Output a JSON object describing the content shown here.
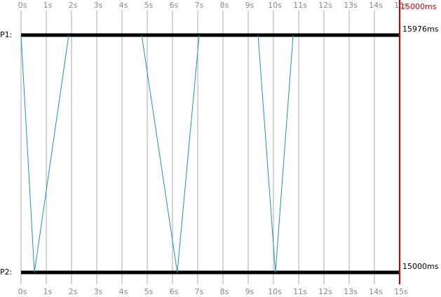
{
  "axis": {
    "xlim": [
      0,
      15
    ],
    "ticks": [
      {
        "value": 0,
        "label": "0s"
      },
      {
        "value": 1,
        "label": "1s"
      },
      {
        "value": 2,
        "label": "2s"
      },
      {
        "value": 3,
        "label": "3s"
      },
      {
        "value": 4,
        "label": "4s"
      },
      {
        "value": 5,
        "label": "5s"
      },
      {
        "value": 6,
        "label": "6s"
      },
      {
        "value": 7,
        "label": "7s"
      },
      {
        "value": 8,
        "label": "8s"
      },
      {
        "value": 9,
        "label": "9s"
      },
      {
        "value": 10,
        "label": "10s"
      },
      {
        "value": 11,
        "label": "11s"
      },
      {
        "value": 12,
        "label": "12s"
      },
      {
        "value": 13,
        "label": "13s"
      },
      {
        "value": 14,
        "label": "14s"
      },
      {
        "value": 15,
        "label": "15s"
      }
    ]
  },
  "marker": {
    "value": 15000,
    "label": "15000ms",
    "color": "#cc0000"
  },
  "processes": [
    {
      "label": "P1:",
      "end_label": "15976ms"
    },
    {
      "label": "P2:",
      "end_label": "15000ms"
    }
  ],
  "message_color": "#1f8fc8",
  "messages": [
    {
      "send": 0,
      "receive": 0.53
    },
    {
      "send": 0.53,
      "receive": 1.89
    },
    {
      "send": 4.78,
      "receive": 6.19
    },
    {
      "send": 6.19,
      "receive": 7.06
    },
    {
      "send": 9.39,
      "receive": 10.08
    },
    {
      "send": 10.08,
      "receive": 10.78
    }
  ]
}
